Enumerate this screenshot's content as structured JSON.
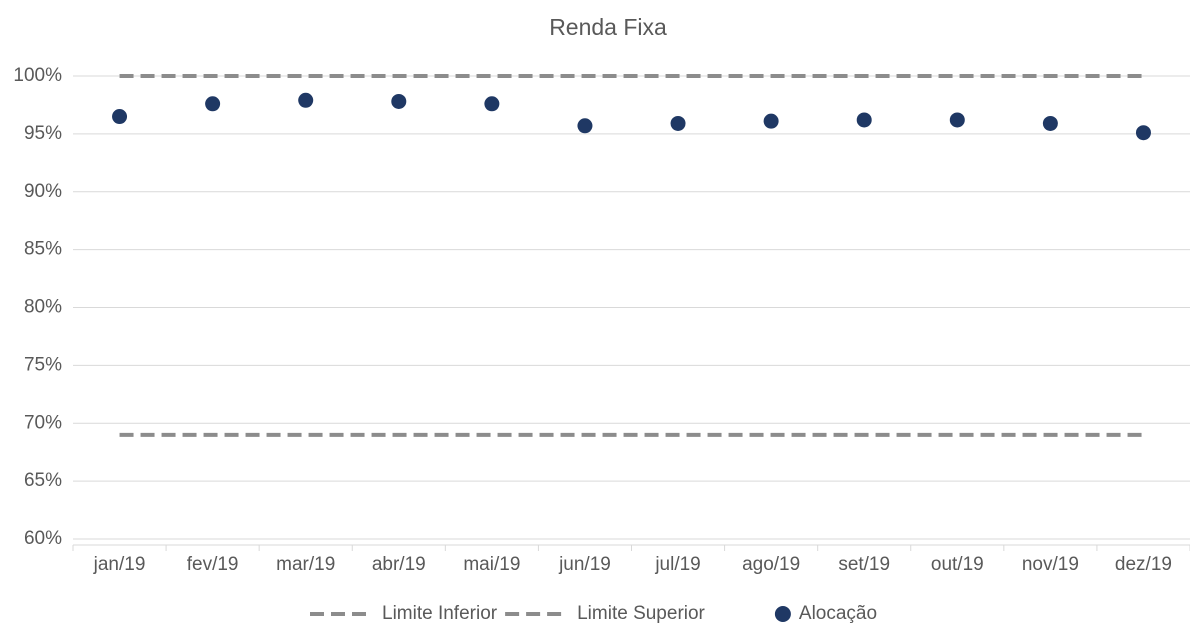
{
  "chart_data": {
    "type": "line",
    "title": "Renda Fixa",
    "categories": [
      "jan/19",
      "fev/19",
      "mar/19",
      "abr/19",
      "mai/19",
      "jun/19",
      "jul/19",
      "ago/19",
      "set/19",
      "out/19",
      "nov/19",
      "dez/19"
    ],
    "series": [
      {
        "name": "Limite Inferior",
        "color": "#8c8c8c",
        "style": "dashed",
        "values": [
          69,
          69,
          69,
          69,
          69,
          69,
          69,
          69,
          69,
          69,
          69,
          69
        ]
      },
      {
        "name": "Limite Superior",
        "color": "#8c8c8c",
        "style": "dashed",
        "values": [
          100,
          100,
          100,
          100,
          100,
          100,
          100,
          100,
          100,
          100,
          100,
          100
        ]
      },
      {
        "name": "Alocação",
        "color": "#1f3864",
        "style": "markers",
        "values": [
          96.5,
          97.6,
          97.9,
          97.8,
          97.6,
          95.7,
          95.9,
          96.1,
          96.2,
          96.2,
          95.9,
          95.1
        ]
      }
    ],
    "ylim": [
      60,
      100
    ],
    "yticks": [
      {
        "value": 60,
        "label": "60%"
      },
      {
        "value": 65,
        "label": "65%"
      },
      {
        "value": 70,
        "label": "70%"
      },
      {
        "value": 75,
        "label": "75%"
      },
      {
        "value": 80,
        "label": "80%"
      },
      {
        "value": 85,
        "label": "85%"
      },
      {
        "value": 90,
        "label": "90%"
      },
      {
        "value": 95,
        "label": "95%"
      },
      {
        "value": 100,
        "label": "100%"
      }
    ],
    "grid": true,
    "legend": "bottom"
  }
}
